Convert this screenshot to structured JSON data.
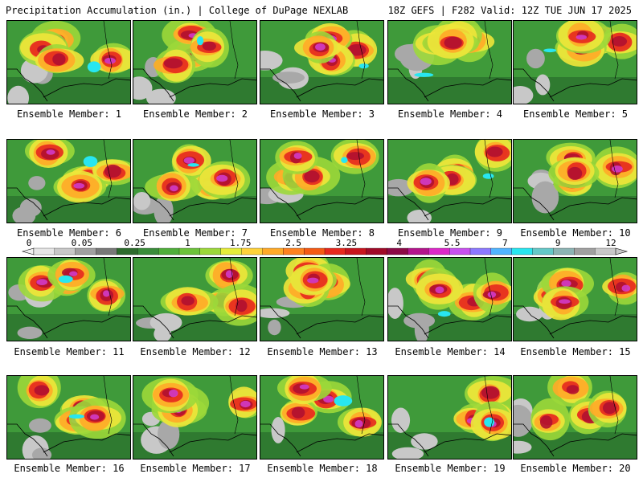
{
  "header": {
    "left": "Precipitation Accumulation (in.) | College of DuPage NEXLAB",
    "right": "18Z GEFS | F282 Valid: 12Z TUE JUN 17 2025"
  },
  "panels": [
    {
      "label": "Ensemble Member: 1"
    },
    {
      "label": "Ensemble Member: 2"
    },
    {
      "label": "Ensemble Member: 3"
    },
    {
      "label": "Ensemble Member: 4"
    },
    {
      "label": "Ensemble Member: 5"
    },
    {
      "label": "Ensemble Member: 6"
    },
    {
      "label": "Ensemble Member: 7"
    },
    {
      "label": "Ensemble Member: 8"
    },
    {
      "label": "Ensemble Member: 9"
    },
    {
      "label": "Ensemble Member: 10"
    },
    {
      "label": "Ensemble Member: 11"
    },
    {
      "label": "Ensemble Member: 12"
    },
    {
      "label": "Ensemble Member: 13"
    },
    {
      "label": "Ensemble Member: 14"
    },
    {
      "label": "Ensemble Member: 15"
    },
    {
      "label": "Ensemble Member: 16"
    },
    {
      "label": "Ensemble Member: 17"
    },
    {
      "label": "Ensemble Member: 18"
    },
    {
      "label": "Ensemble Member: 19"
    },
    {
      "label": "Ensemble Member: 20"
    }
  ],
  "colorbar": {
    "tick_labels": [
      "0",
      "0.05",
      "0.25",
      "1",
      "1.75",
      "2.5",
      "3.25",
      "4",
      "5.5",
      "7",
      "9",
      "12"
    ],
    "colors": [
      "#e6e6e6",
      "#c8c8c8",
      "#a0a0a0",
      "#787878",
      "#2d6b2d",
      "#3a8c3a",
      "#4fae3a",
      "#6cc23a",
      "#9cd83a",
      "#e6ec3a",
      "#ffd23a",
      "#ffaa28",
      "#ff8220",
      "#f55a14",
      "#e6281e",
      "#c8141e",
      "#a00a28",
      "#8c0a46",
      "#b4148c",
      "#dc28c8",
      "#c850f0",
      "#8c78ff",
      "#50b4ff",
      "#28e6f0",
      "#64c8c8",
      "#8cb4b4",
      "#a0a0a0",
      "#c8c8c8"
    ]
  }
}
